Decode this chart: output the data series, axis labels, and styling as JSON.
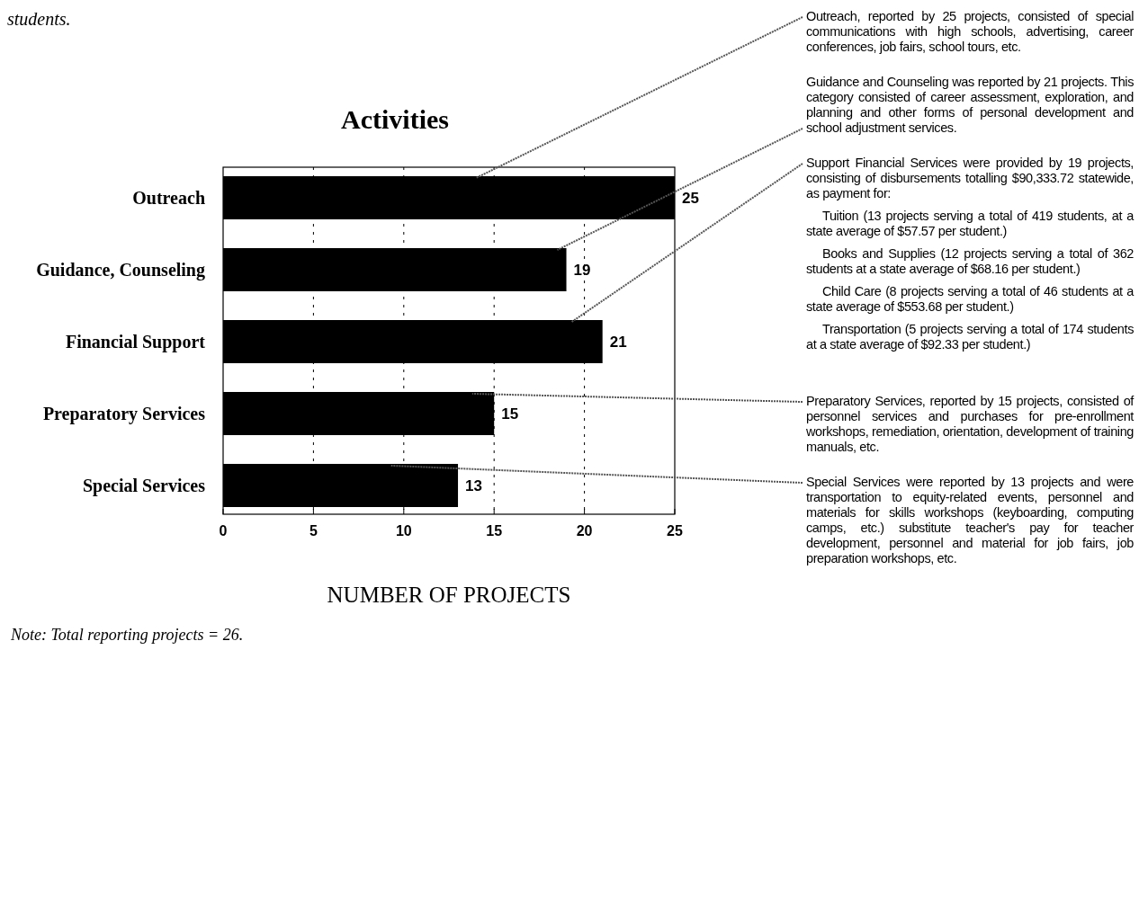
{
  "chart_data": {
    "type": "bar",
    "orientation": "horizontal",
    "title": "Activities",
    "xlabel": "NUMBER OF PROJECTS",
    "categories": [
      "Outreach",
      "Guidance, Counseling",
      "Financial Support",
      "Preparatory Services",
      "Special Services"
    ],
    "values": [
      25,
      19,
      21,
      15,
      13
    ],
    "color": "#000000",
    "data_labels": true,
    "xlim": [
      0,
      25
    ],
    "xticks": [
      0,
      5,
      10,
      15,
      20,
      25
    ],
    "grid": "x",
    "annotations": [
      "students.",
      "Note: Total reporting projects = 26.",
      "Outreach, reported by 25 projects, consisted of special communications with high schools, advertising, career conferences, job fairs, school tours, etc.",
      "Guidance and Counseling was reported by 21 projects. This category consisted of career assessment, exploration, and planning and other forms of personal development and school adjustment services.",
      "Support Financial Services were provided by 19 projects, consisting of disbursements totalling $90,333.72 statewide, as payment for:",
      "Tuition (13 projects serving a total of 419 students, at a state average of $57.57 per student.)",
      "Books and Supplies (12 projects serving a total of 362 students at a state average of $68.16 per student.)",
      "Child Care (8 projects serving a total of 46 students at a state average of $553.68 per student.)",
      "Transportation (5 projects serving a total of 174 students at a state average of $92.33 per student.)",
      "Preparatory Services, reported by 15 projects, consisted of personnel services and purchases for pre-enrollment workshops, remediation, orientation, development of training manuals, etc.",
      "Special Services were reported by 13 projects and were transportation to equity-related events, personnel and materials for skills workshops (keyboarding, computing camps, etc.) substitute teacher's pay for teacher development, personnel and material for job fairs, job preparation workshops, etc."
    ]
  }
}
